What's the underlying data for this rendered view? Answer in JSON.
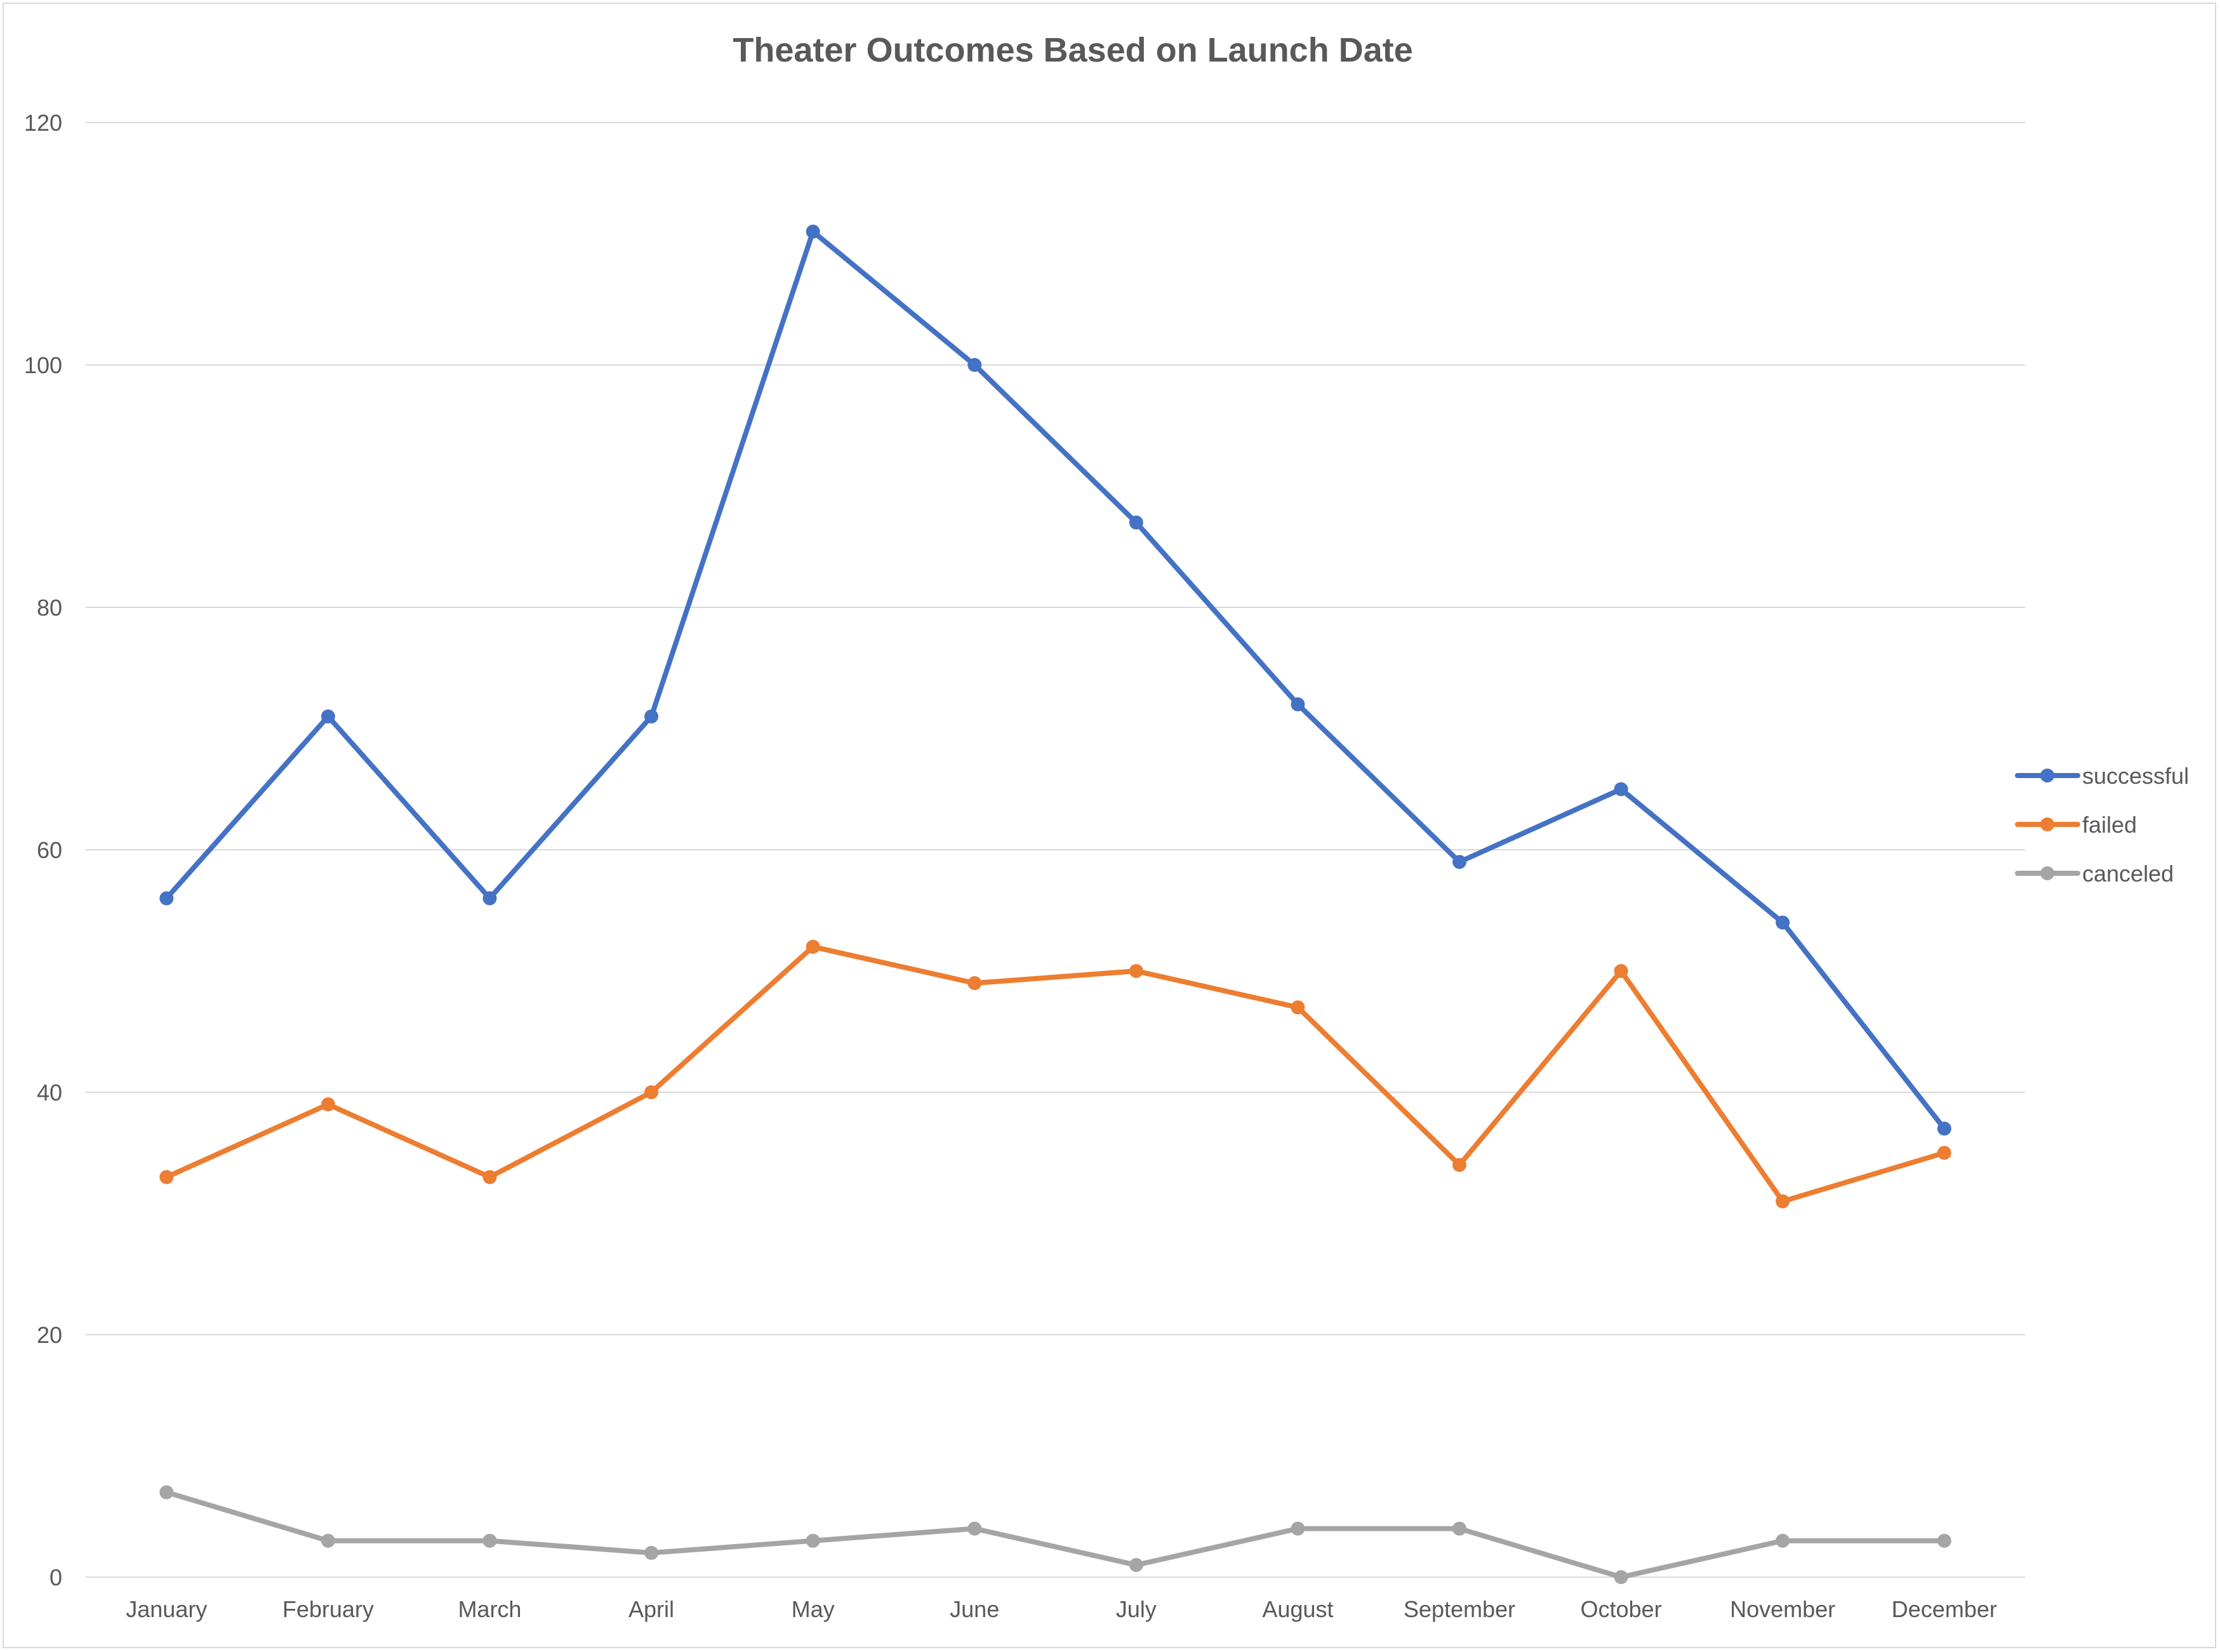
{
  "chart_data": {
    "type": "line",
    "title": "Theater Outcomes Based on Launch Date",
    "xlabel": "",
    "ylabel": "",
    "categories": [
      "January",
      "February",
      "March",
      "April",
      "May",
      "June",
      "July",
      "August",
      "September",
      "October",
      "November",
      "December"
    ],
    "y_ticks": [
      "0",
      "20",
      "40",
      "60",
      "80",
      "100",
      "120"
    ],
    "ylim": [
      0,
      120
    ],
    "grid": "horizontal",
    "legend_position": "right",
    "series": [
      {
        "name": "successful",
        "color": "#4472C4",
        "values": [
          56,
          71,
          56,
          71,
          111,
          100,
          87,
          72,
          59,
          65,
          54,
          37
        ]
      },
      {
        "name": "failed",
        "color": "#ED7D31",
        "values": [
          33,
          39,
          33,
          40,
          52,
          49,
          50,
          47,
          34,
          50,
          31,
          35
        ]
      },
      {
        "name": "canceled",
        "color": "#A5A5A5",
        "values": [
          7,
          3,
          3,
          2,
          3,
          4,
          1,
          4,
          4,
          0,
          3,
          3
        ]
      }
    ]
  }
}
